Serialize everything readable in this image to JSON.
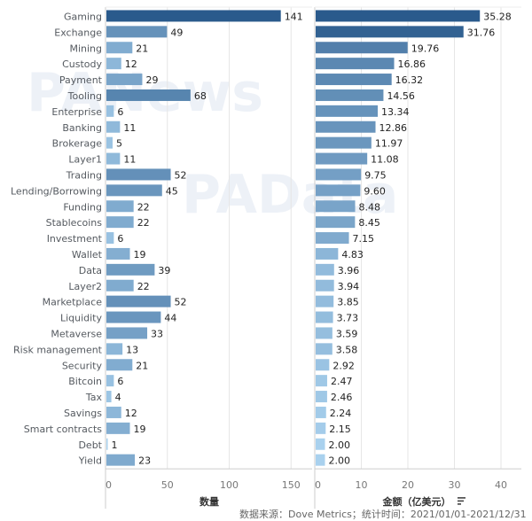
{
  "chart_data": [
    {
      "type": "bar",
      "orientation": "horizontal",
      "title": "",
      "xlabel": "数量",
      "ylabel": "",
      "xlim": [
        0,
        160
      ],
      "ticks": [
        0,
        50,
        100,
        150
      ],
      "grid": true,
      "categories": [
        "Gaming",
        "Exchange",
        "Mining",
        "Custody",
        "Payment",
        "Tooling",
        "Enterprise",
        "Banking",
        "Brokerage",
        "Layer1",
        "Trading",
        "Lending/Borrowing",
        "Funding",
        "Stablecoins",
        "Investment",
        "Wallet",
        "Data",
        "Layer2",
        "Marketplace",
        "Liquidity",
        "Metaverse",
        "Risk management",
        "Security",
        "Bitcoin",
        "Tax",
        "Savings",
        "Smart contracts",
        "Debt",
        "Yield"
      ],
      "values": [
        141,
        49,
        21,
        12,
        29,
        68,
        6,
        11,
        5,
        11,
        52,
        45,
        22,
        22,
        6,
        19,
        39,
        22,
        52,
        44,
        33,
        13,
        21,
        6,
        4,
        12,
        19,
        1,
        23
      ],
      "value_labels": [
        "141",
        "49",
        "21",
        "12",
        "29",
        "68",
        "6",
        "11",
        "5",
        "11",
        "52",
        "45",
        "22",
        "22",
        "6",
        "19",
        "39",
        "22",
        "52",
        "44",
        "33",
        "13",
        "21",
        "6",
        "4",
        "12",
        "19",
        "1",
        "23"
      ]
    },
    {
      "type": "bar",
      "orientation": "horizontal",
      "title": "",
      "xlabel": "金额（亿美元）",
      "ylabel": "",
      "xlim": [
        0,
        42
      ],
      "ticks": [
        0,
        10,
        20,
        30,
        40
      ],
      "grid": true,
      "sort_indicator": "sort-descending-icon",
      "categories": [
        "Gaming",
        "Exchange",
        "Mining",
        "Custody",
        "Payment",
        "Tooling",
        "Enterprise",
        "Banking",
        "Brokerage",
        "Layer1",
        "Trading",
        "Lending/Borrowing",
        "Funding",
        "Stablecoins",
        "Investment",
        "Wallet",
        "Data",
        "Layer2",
        "Marketplace",
        "Liquidity",
        "Metaverse",
        "Risk management",
        "Security",
        "Bitcoin",
        "Tax",
        "Savings",
        "Smart contracts",
        "Debt",
        "Yield"
      ],
      "values": [
        35.28,
        31.76,
        19.76,
        16.86,
        16.32,
        14.56,
        13.34,
        12.86,
        11.97,
        11.08,
        9.75,
        9.6,
        8.48,
        8.45,
        7.15,
        4.83,
        3.96,
        3.94,
        3.85,
        3.73,
        3.59,
        3.58,
        2.92,
        2.47,
        2.46,
        2.24,
        2.15,
        2.0,
        2.0
      ],
      "value_labels": [
        "35.28",
        "31.76",
        "19.76",
        "16.86",
        "16.32",
        "14.56",
        "13.34",
        "12.86",
        "11.97",
        "11.08",
        "9.75",
        "9.60",
        "8.48",
        "8.45",
        "7.15",
        "4.83",
        "3.96",
        "3.94",
        "3.85",
        "3.73",
        "3.59",
        "3.58",
        "2.92",
        "2.47",
        "2.46",
        "2.24",
        "2.15",
        "2.00",
        "2.00"
      ]
    }
  ],
  "colors": {
    "low": "#a9d1ee",
    "high": "#2a5a8c",
    "grid": "#e6e6e6",
    "axis": "#cccccc"
  },
  "footer": {
    "text": "数据来源：Dove Metrics；统计时间：2021/01/01-2021/12/31"
  },
  "watermarks": [
    "PANews",
    "PAData"
  ]
}
